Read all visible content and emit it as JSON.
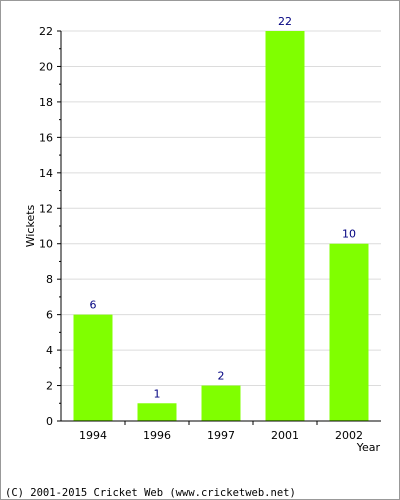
{
  "chart_data": {
    "type": "bar",
    "categories": [
      "1994",
      "1996",
      "1997",
      "2001",
      "2002"
    ],
    "values": [
      6,
      1,
      2,
      22,
      10
    ],
    "title": "",
    "xlabel": "Year",
    "ylabel": "Wickets",
    "ylim": [
      0,
      22
    ],
    "yticks": [
      0,
      2,
      4,
      6,
      8,
      10,
      12,
      14,
      16,
      18,
      20,
      22
    ],
    "grid": true,
    "bar_color": "#80ff00",
    "label_color": "#000080"
  },
  "footer": {
    "copyright": "(C) 2001-2015 Cricket Web (www.cricketweb.net)"
  }
}
